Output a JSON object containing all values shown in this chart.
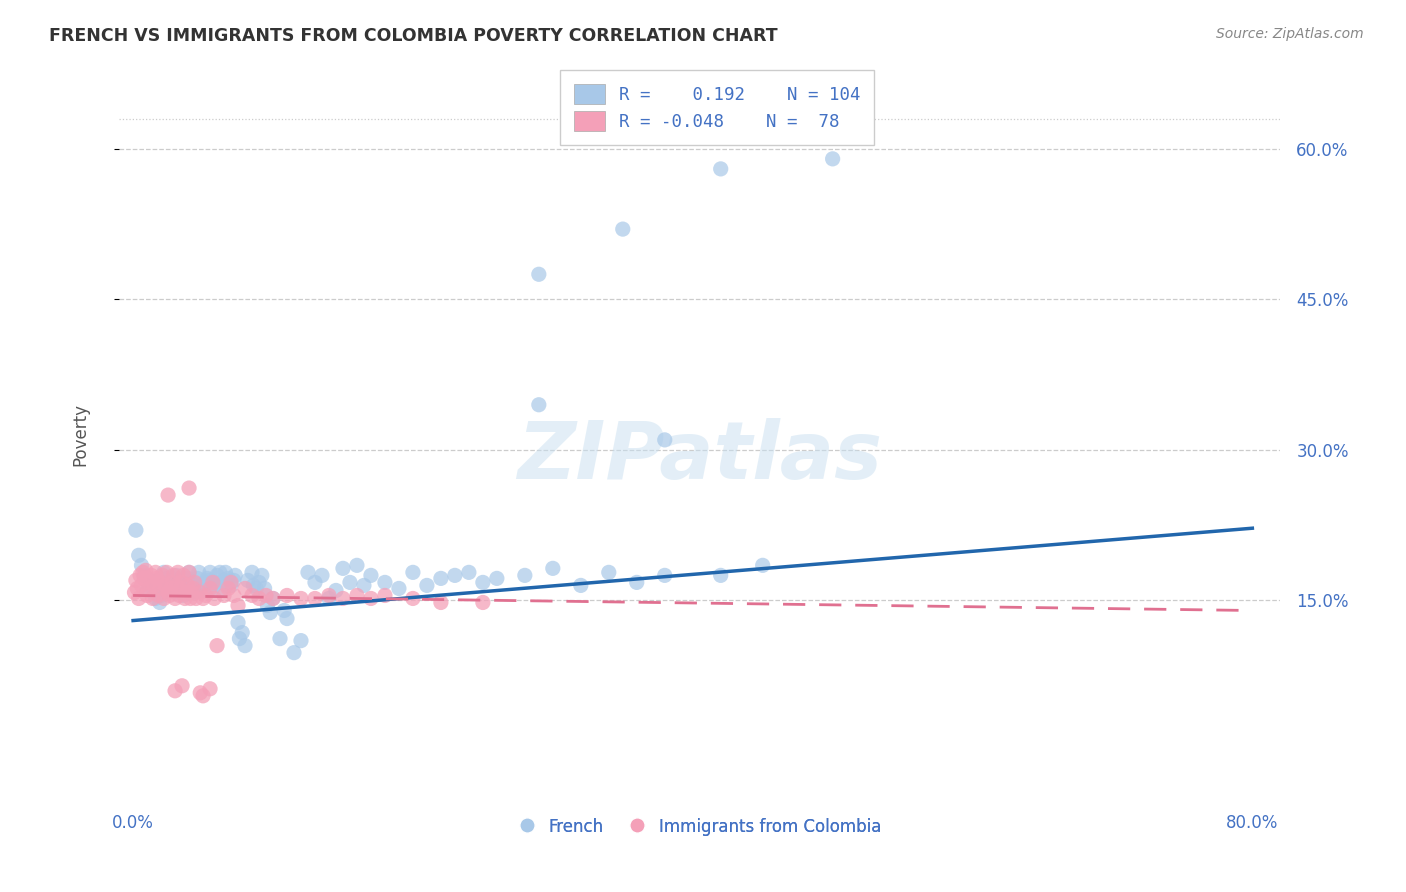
{
  "title": "FRENCH VS IMMIGRANTS FROM COLOMBIA POVERTY CORRELATION CHART",
  "source": "Source: ZipAtlas.com",
  "ylabel": "Poverty",
  "watermark": "ZIPatlas",
  "blue_color": "#a8c8e8",
  "pink_color": "#f4a0b8",
  "blue_line_color": "#2166ac",
  "pink_line_color": "#e07090",
  "blue_scatter": [
    [
      0.002,
      0.22
    ],
    [
      0.004,
      0.195
    ],
    [
      0.006,
      0.185
    ],
    [
      0.008,
      0.175
    ],
    [
      0.01,
      0.16
    ],
    [
      0.012,
      0.17
    ],
    [
      0.014,
      0.165
    ],
    [
      0.015,
      0.158
    ],
    [
      0.016,
      0.152
    ],
    [
      0.017,
      0.162
    ],
    [
      0.018,
      0.17
    ],
    [
      0.019,
      0.148
    ],
    [
      0.02,
      0.155
    ],
    [
      0.021,
      0.168
    ],
    [
      0.022,
      0.178
    ],
    [
      0.023,
      0.162
    ],
    [
      0.024,
      0.172
    ],
    [
      0.025,
      0.165
    ],
    [
      0.026,
      0.16
    ],
    [
      0.027,
      0.168
    ],
    [
      0.028,
      0.172
    ],
    [
      0.029,
      0.162
    ],
    [
      0.03,
      0.158
    ],
    [
      0.031,
      0.175
    ],
    [
      0.032,
      0.165
    ],
    [
      0.033,
      0.17
    ],
    [
      0.034,
      0.168
    ],
    [
      0.035,
      0.162
    ],
    [
      0.036,
      0.155
    ],
    [
      0.037,
      0.16
    ],
    [
      0.038,
      0.165
    ],
    [
      0.039,
      0.172
    ],
    [
      0.04,
      0.178
    ],
    [
      0.041,
      0.162
    ],
    [
      0.042,
      0.168
    ],
    [
      0.043,
      0.165
    ],
    [
      0.044,
      0.158
    ],
    [
      0.045,
      0.162
    ],
    [
      0.046,
      0.172
    ],
    [
      0.047,
      0.178
    ],
    [
      0.048,
      0.165
    ],
    [
      0.049,
      0.16
    ],
    [
      0.05,
      0.165
    ],
    [
      0.052,
      0.168
    ],
    [
      0.053,
      0.172
    ],
    [
      0.054,
      0.17
    ],
    [
      0.055,
      0.178
    ],
    [
      0.056,
      0.165
    ],
    [
      0.057,
      0.162
    ],
    [
      0.058,
      0.168
    ],
    [
      0.06,
      0.175
    ],
    [
      0.062,
      0.178
    ],
    [
      0.063,
      0.168
    ],
    [
      0.064,
      0.162
    ],
    [
      0.065,
      0.17
    ],
    [
      0.066,
      0.178
    ],
    [
      0.067,
      0.165
    ],
    [
      0.068,
      0.172
    ],
    [
      0.07,
      0.165
    ],
    [
      0.072,
      0.17
    ],
    [
      0.073,
      0.175
    ],
    [
      0.075,
      0.128
    ],
    [
      0.076,
      0.112
    ],
    [
      0.078,
      0.118
    ],
    [
      0.08,
      0.105
    ],
    [
      0.082,
      0.17
    ],
    [
      0.085,
      0.178
    ],
    [
      0.086,
      0.165
    ],
    [
      0.088,
      0.162
    ],
    [
      0.09,
      0.168
    ],
    [
      0.092,
      0.175
    ],
    [
      0.094,
      0.162
    ],
    [
      0.096,
      0.145
    ],
    [
      0.098,
      0.138
    ],
    [
      0.1,
      0.152
    ],
    [
      0.105,
      0.112
    ],
    [
      0.108,
      0.14
    ],
    [
      0.11,
      0.132
    ],
    [
      0.115,
      0.098
    ],
    [
      0.12,
      0.11
    ],
    [
      0.125,
      0.178
    ],
    [
      0.13,
      0.168
    ],
    [
      0.135,
      0.175
    ],
    [
      0.14,
      0.152
    ],
    [
      0.145,
      0.16
    ],
    [
      0.15,
      0.182
    ],
    [
      0.155,
      0.168
    ],
    [
      0.16,
      0.185
    ],
    [
      0.165,
      0.165
    ],
    [
      0.17,
      0.175
    ],
    [
      0.18,
      0.168
    ],
    [
      0.19,
      0.162
    ],
    [
      0.2,
      0.178
    ],
    [
      0.21,
      0.165
    ],
    [
      0.22,
      0.172
    ],
    [
      0.23,
      0.175
    ],
    [
      0.24,
      0.178
    ],
    [
      0.25,
      0.168
    ],
    [
      0.26,
      0.172
    ],
    [
      0.28,
      0.175
    ],
    [
      0.3,
      0.182
    ],
    [
      0.32,
      0.165
    ],
    [
      0.34,
      0.178
    ],
    [
      0.36,
      0.168
    ],
    [
      0.38,
      0.175
    ],
    [
      0.42,
      0.175
    ],
    [
      0.45,
      0.185
    ],
    [
      0.38,
      0.31
    ],
    [
      0.42,
      0.58
    ],
    [
      0.5,
      0.59
    ],
    [
      0.35,
      0.52
    ],
    [
      0.29,
      0.475
    ],
    [
      0.29,
      0.345
    ]
  ],
  "pink_scatter": [
    [
      0.001,
      0.158
    ],
    [
      0.002,
      0.17
    ],
    [
      0.003,
      0.162
    ],
    [
      0.004,
      0.152
    ],
    [
      0.005,
      0.175
    ],
    [
      0.006,
      0.165
    ],
    [
      0.007,
      0.178
    ],
    [
      0.008,
      0.172
    ],
    [
      0.009,
      0.18
    ],
    [
      0.01,
      0.155
    ],
    [
      0.011,
      0.162
    ],
    [
      0.012,
      0.168
    ],
    [
      0.013,
      0.175
    ],
    [
      0.014,
      0.152
    ],
    [
      0.015,
      0.165
    ],
    [
      0.016,
      0.178
    ],
    [
      0.017,
      0.172
    ],
    [
      0.018,
      0.155
    ],
    [
      0.019,
      0.162
    ],
    [
      0.02,
      0.168
    ],
    [
      0.021,
      0.175
    ],
    [
      0.022,
      0.152
    ],
    [
      0.023,
      0.165
    ],
    [
      0.024,
      0.178
    ],
    [
      0.025,
      0.158
    ],
    [
      0.026,
      0.155
    ],
    [
      0.027,
      0.162
    ],
    [
      0.028,
      0.168
    ],
    [
      0.029,
      0.175
    ],
    [
      0.03,
      0.152
    ],
    [
      0.031,
      0.165
    ],
    [
      0.032,
      0.178
    ],
    [
      0.033,
      0.155
    ],
    [
      0.034,
      0.162
    ],
    [
      0.035,
      0.168
    ],
    [
      0.036,
      0.175
    ],
    [
      0.037,
      0.152
    ],
    [
      0.038,
      0.158
    ],
    [
      0.039,
      0.165
    ],
    [
      0.04,
      0.178
    ],
    [
      0.041,
      0.152
    ],
    [
      0.042,
      0.158
    ],
    [
      0.043,
      0.162
    ],
    [
      0.044,
      0.168
    ],
    [
      0.045,
      0.152
    ],
    [
      0.048,
      0.158
    ],
    [
      0.05,
      0.152
    ],
    [
      0.052,
      0.155
    ],
    [
      0.055,
      0.162
    ],
    [
      0.057,
      0.168
    ],
    [
      0.058,
      0.152
    ],
    [
      0.025,
      0.255
    ],
    [
      0.04,
      0.262
    ],
    [
      0.06,
      0.105
    ],
    [
      0.065,
      0.155
    ],
    [
      0.068,
      0.162
    ],
    [
      0.07,
      0.168
    ],
    [
      0.072,
      0.155
    ],
    [
      0.075,
      0.145
    ],
    [
      0.08,
      0.162
    ],
    [
      0.085,
      0.155
    ],
    [
      0.09,
      0.152
    ],
    [
      0.095,
      0.155
    ],
    [
      0.1,
      0.152
    ],
    [
      0.11,
      0.155
    ],
    [
      0.12,
      0.152
    ],
    [
      0.13,
      0.152
    ],
    [
      0.14,
      0.155
    ],
    [
      0.15,
      0.152
    ],
    [
      0.16,
      0.155
    ],
    [
      0.17,
      0.152
    ],
    [
      0.18,
      0.155
    ],
    [
      0.2,
      0.152
    ],
    [
      0.22,
      0.148
    ],
    [
      0.25,
      0.148
    ],
    [
      0.03,
      0.06
    ],
    [
      0.05,
      0.055
    ],
    [
      0.035,
      0.065
    ],
    [
      0.048,
      0.058
    ],
    [
      0.055,
      0.062
    ]
  ],
  "x_ticks": [
    0.0,
    0.1,
    0.2,
    0.3,
    0.4,
    0.5,
    0.6,
    0.7,
    0.8
  ],
  "x_tick_labels": [
    "0.0%",
    "",
    "",
    "",
    "",
    "",
    "",
    "",
    "80.0%"
  ],
  "y_ticks": [
    0.15,
    0.3,
    0.45,
    0.6
  ],
  "y_tick_labels": [
    "15.0%",
    "30.0%",
    "45.0%",
    "60.0%"
  ],
  "xlim": [
    -0.01,
    0.82
  ],
  "ylim": [
    -0.05,
    0.68
  ],
  "blue_line_x": [
    0.0,
    0.8
  ],
  "blue_line_y": [
    0.13,
    0.222
  ],
  "pink_line_x": [
    0.0,
    0.8
  ],
  "pink_line_y": [
    0.155,
    0.14
  ],
  "grid_color": "#cccccc",
  "bg_color": "#ffffff",
  "title_color": "#333333",
  "axis_label_color": "#555555",
  "tick_label_color_blue": "#4472c4",
  "source_color": "#888888"
}
